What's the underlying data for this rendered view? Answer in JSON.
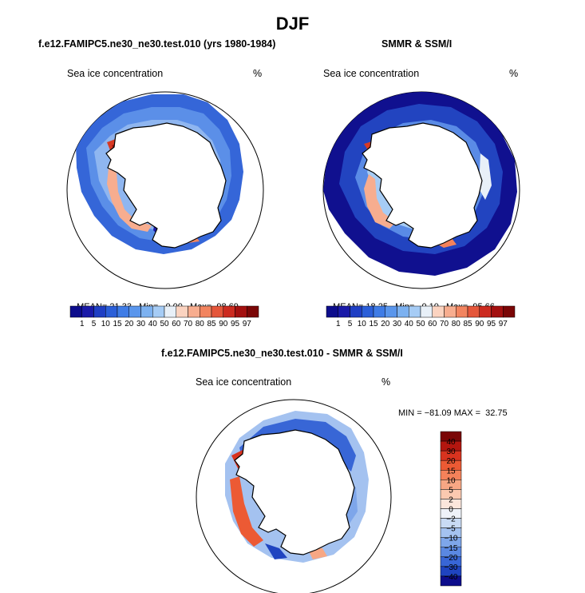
{
  "title": "DJF",
  "panels": [
    {
      "title": "f.e12.FAMIPC5.ne30_ne30.test.010 (yrs 1980-1984)",
      "variable": "Sea ice concentration",
      "units": "%",
      "stats": {
        "mean_label": "MEAN=",
        "mean": "21.33",
        "min_label": "Min=",
        "min": "0.00",
        "max_label": "Max=",
        "max": "98.69"
      }
    },
    {
      "title": "SMMR & SSM/I",
      "variable": "Sea ice concentration",
      "units": "%",
      "stats": {
        "mean_label": "MEAN=",
        "mean": "18.25",
        "min_label": "Min=",
        "min": "0.10",
        "max_label": "Max=",
        "max": "95.66"
      }
    },
    {
      "title": "f.e12.FAMIPC5.ne30_ne30.test.010 - SMMR & SSM/I",
      "variable": "Sea ice concentration",
      "units": "%",
      "stats_text": "MIN = −81.09 MAX =  32.75"
    }
  ],
  "colorbar_conc": {
    "labels": [
      "1",
      "5",
      "10",
      "15",
      "20",
      "30",
      "40",
      "50",
      "60",
      "70",
      "80",
      "85",
      "90",
      "95",
      "97"
    ],
    "colors": [
      "#0d0d8c",
      "#1a1aa8",
      "#1f3fc4",
      "#2b5fd8",
      "#3f7ce6",
      "#5a96ec",
      "#7cb1f0",
      "#a6ccf5",
      "#e8f0f8",
      "#fbd3c0",
      "#f7ad8f",
      "#f2845f",
      "#e4563a",
      "#cc2b20",
      "#a3100f",
      "#7a0606"
    ]
  },
  "colorbar_diff": {
    "labels": [
      "40",
      "30",
      "20",
      "15",
      "10",
      "5",
      "2",
      "0",
      "−2",
      "−5",
      "−10",
      "−15",
      "−20",
      "−30",
      "−40"
    ],
    "colors": [
      "#7a0606",
      "#b3160f",
      "#d8331f",
      "#ec5a34",
      "#f4825a",
      "#f7a784",
      "#fbc9b0",
      "#fbe6dc",
      "#eef2f8",
      "#c9dbf4",
      "#a4c2f0",
      "#7ea6ea",
      "#5a88e2",
      "#3866d6",
      "#1f44c0",
      "#0d0d8c"
    ]
  }
}
